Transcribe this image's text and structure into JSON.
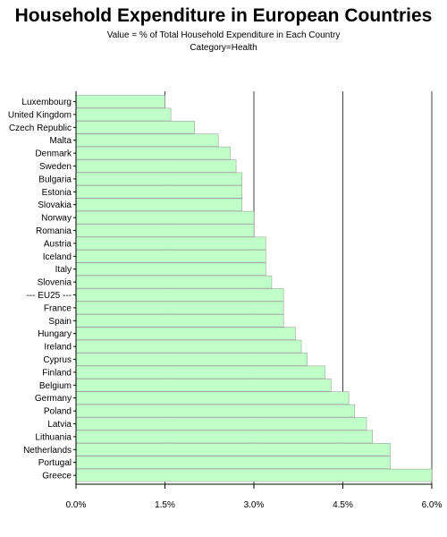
{
  "chart_data": {
    "type": "bar",
    "orientation": "horizontal",
    "title": "Household Expenditure in European Countries",
    "subtitle_lines": [
      "Value = % of Total Household Expenditure in Each Country",
      "Category=Health"
    ],
    "xlabel": "",
    "ylabel": "",
    "xlim": [
      0,
      6
    ],
    "ticks": [
      0,
      1.5,
      3.0,
      4.5,
      6.0
    ],
    "tick_labels": [
      "0.0%",
      "1.5%",
      "3.0%",
      "4.5%",
      "6.0%"
    ],
    "grid": "vertical lines at major ticks",
    "bar_color": "#c0ffc8",
    "bar_edge_color": "#a0a0a0",
    "categories": [
      "Luxembourg",
      "United Kingdom",
      "Czech Republic",
      "Malta",
      "Denmark",
      "Sweden",
      "Bulgaria",
      "Estonia",
      "Slovakia",
      "Norway",
      "Romania",
      "Austria",
      "Iceland",
      "Italy",
      "Slovenia",
      "--- EU25 ---",
      "France",
      "Spain",
      "Hungary",
      "Ireland",
      "Cyprus",
      "Finland",
      "Belgium",
      "Germany",
      "Poland",
      "Latvia",
      "Lithuania",
      "Netherlands",
      "Portugal",
      "Greece"
    ],
    "values": [
      1.5,
      1.6,
      2.0,
      2.4,
      2.6,
      2.7,
      2.8,
      2.8,
      2.8,
      3.0,
      3.0,
      3.2,
      3.2,
      3.2,
      3.3,
      3.5,
      3.5,
      3.5,
      3.7,
      3.8,
      3.9,
      4.2,
      4.3,
      4.6,
      4.7,
      4.9,
      5.0,
      5.3,
      5.3,
      6.0
    ]
  }
}
